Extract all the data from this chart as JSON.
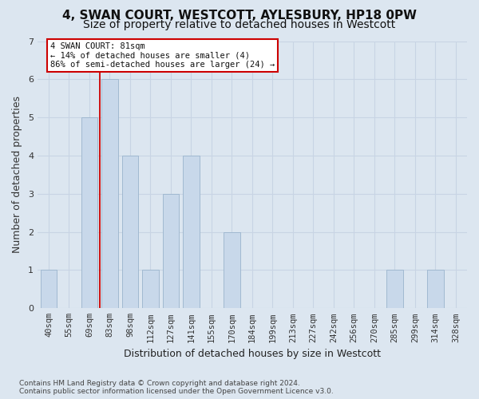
{
  "title1": "4, SWAN COURT, WESTCOTT, AYLESBURY, HP18 0PW",
  "title2": "Size of property relative to detached houses in Westcott",
  "xlabel": "Distribution of detached houses by size in Westcott",
  "ylabel": "Number of detached properties",
  "categories": [
    "40sqm",
    "55sqm",
    "69sqm",
    "83sqm",
    "98sqm",
    "112sqm",
    "127sqm",
    "141sqm",
    "155sqm",
    "170sqm",
    "184sqm",
    "199sqm",
    "213sqm",
    "227sqm",
    "242sqm",
    "256sqm",
    "270sqm",
    "285sqm",
    "299sqm",
    "314sqm",
    "328sqm"
  ],
  "values": [
    1,
    0,
    5,
    6,
    4,
    1,
    3,
    4,
    0,
    2,
    0,
    0,
    0,
    0,
    0,
    0,
    0,
    1,
    0,
    1,
    0
  ],
  "bar_color": "#c8d8ea",
  "bar_edge_color": "#9ab4cc",
  "red_line_x": 2.5,
  "annotation_text": "4 SWAN COURT: 81sqm\n← 14% of detached houses are smaller (4)\n86% of semi-detached houses are larger (24) →",
  "annotation_box_facecolor": "#ffffff",
  "annotation_box_edgecolor": "#cc0000",
  "grid_color": "#c8d4e4",
  "fig_facecolor": "#dce6f0",
  "plot_facecolor": "#dce6f0",
  "title1_fontsize": 11,
  "title2_fontsize": 10,
  "xlabel_fontsize": 9,
  "ylabel_fontsize": 9,
  "tick_fontsize": 7.5,
  "annot_fontsize": 7.5,
  "footer_fontsize": 6.5,
  "footer_text": "Contains HM Land Registry data © Crown copyright and database right 2024.\nContains public sector information licensed under the Open Government Licence v3.0.",
  "ylim": [
    0,
    7
  ],
  "yticks": [
    0,
    1,
    2,
    3,
    4,
    5,
    6,
    7
  ]
}
